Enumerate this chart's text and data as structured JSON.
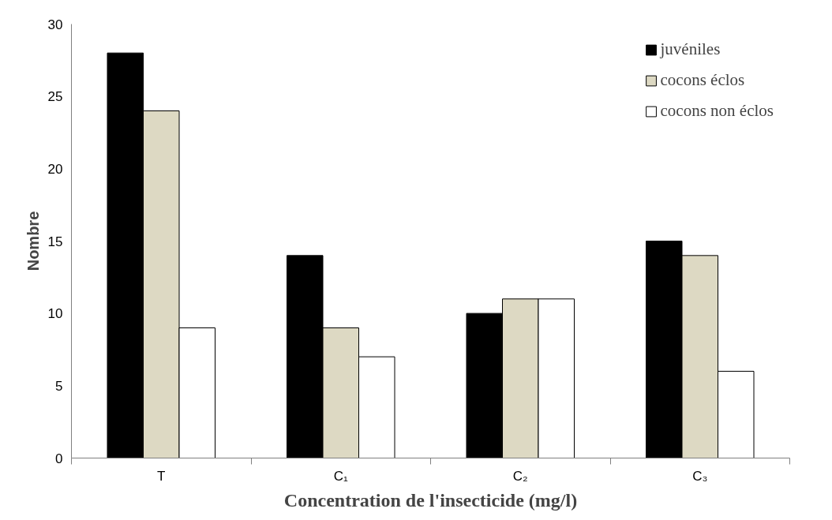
{
  "chart_data": {
    "type": "bar",
    "xlabel": "Concentration de l'insecticide (mg/l)",
    "ylabel": "Nombre",
    "categories": [
      "T",
      "C₁",
      "C₂",
      "C₃"
    ],
    "series": [
      {
        "name": "juvéniles",
        "color": "#000000",
        "values": [
          28,
          14,
          10,
          15
        ]
      },
      {
        "name": "cocons éclos",
        "color": "#ddd9c3",
        "values": [
          24,
          9,
          11,
          14
        ]
      },
      {
        "name": "cocons non éclos",
        "color": "#ffffff",
        "values": [
          9,
          7,
          11,
          6
        ]
      }
    ],
    "ylim": [
      0,
      30
    ],
    "yticks": [
      0,
      5,
      10,
      15,
      20,
      25,
      30
    ],
    "grid": false,
    "legend": "top right"
  }
}
